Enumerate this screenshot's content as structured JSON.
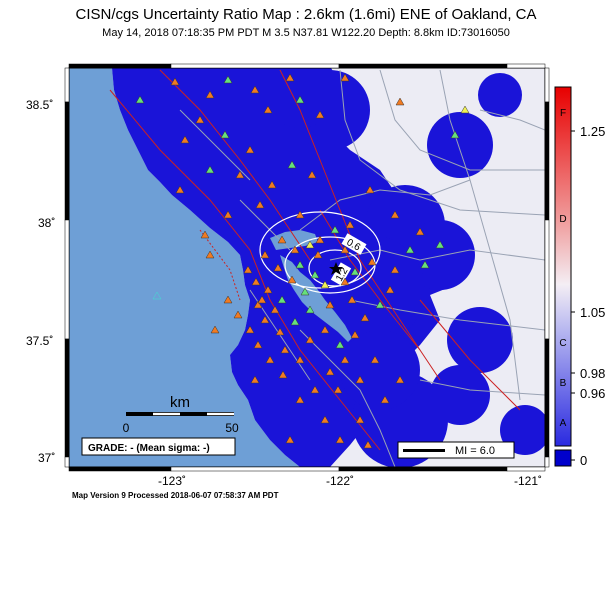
{
  "header": {
    "title": "CISN/cgs Uncertainty Ratio Map : 2.6km (1.6mi) ENE of Oakland, CA",
    "subtitle": "May 14, 2018 07:18:35 PM PDT   M 3.5   N37.81 W122.20   Depth: 8.8km   ID:73016050"
  },
  "map": {
    "lat_ticks": [
      "38.5˚",
      "38˚",
      "37.5˚",
      "37˚"
    ],
    "lon_ticks": [
      "-123˚",
      "-122˚",
      "-121˚"
    ],
    "contour_labels": [
      "0.6",
      "1.2"
    ],
    "scale_bar": {
      "unit": "km",
      "start": "0",
      "end": "50"
    },
    "grade": "GRADE: - (Mean sigma: -)",
    "mi_legend": "MI = 6.0",
    "colors": {
      "land_uncertainty": "#1a14d8",
      "water": "#6e9fd6",
      "low_land": "#ececf4",
      "station_orange": "#f07a22",
      "station_green": "#66e07a",
      "station_yellow": "#f0f055",
      "station_cyan": "#40e0d0"
    }
  },
  "colorbar": {
    "letters": [
      "F",
      "D",
      "C",
      "B",
      "A"
    ],
    "values": [
      "1.25",
      "1.05",
      "0.98",
      "0.96",
      "0"
    ]
  },
  "footer": "Map Version 9 Processed 2018-06-07 07:58:37 AM PDT"
}
